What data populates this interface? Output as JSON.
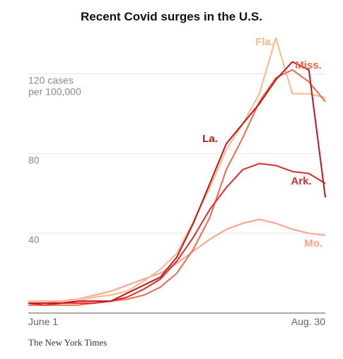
{
  "chart_data": {
    "type": "line",
    "title": "Recent Covid surges in the U.S.",
    "y_unit_label": [
      "120 cases",
      "per 100,000"
    ],
    "y_ticks": [
      40,
      80
    ],
    "ylim": [
      0,
      140
    ],
    "x_ticks": [
      "June 1",
      "Aug. 30"
    ],
    "x_range": [
      "June 1",
      "Aug. 30"
    ],
    "grid": true,
    "x": [
      0,
      5,
      10,
      15,
      20,
      25,
      30,
      35,
      40,
      45,
      50,
      55,
      60,
      65,
      70,
      75,
      80,
      85,
      90
    ],
    "series": [
      {
        "name": "La.",
        "color": "#c0151f",
        "values": [
          5,
          5,
          5,
          6,
          6,
          6,
          10,
          14,
          18,
          28,
          45,
          65,
          85,
          95,
          105,
          117,
          126,
          122,
          58
        ]
      },
      {
        "name": "Fla.",
        "color": "#fbb886",
        "values": [
          6,
          6,
          5,
          6,
          8,
          9,
          11,
          16,
          22,
          30,
          46,
          63,
          82,
          95,
          110,
          138,
          110,
          110,
          108
        ]
      },
      {
        "name": "Miss.",
        "color": "#ef6a4d",
        "values": [
          4,
          4,
          4,
          4,
          5,
          6,
          7,
          9,
          13,
          20,
          32,
          48,
          72,
          88,
          106,
          118,
          122,
          116,
          106
        ]
      },
      {
        "name": "Ark.",
        "color": "#e22a28",
        "values": [
          5,
          4,
          5,
          5,
          5,
          6,
          8,
          12,
          17,
          26,
          38,
          52,
          63,
          72,
          75,
          74,
          71,
          70,
          65
        ]
      },
      {
        "name": "Mo.",
        "color": "#fca38c",
        "values": [
          6,
          6,
          6,
          7,
          9,
          11,
          14,
          17,
          20,
          25,
          31,
          37,
          42,
          45,
          47,
          45,
          42,
          40,
          39
        ]
      }
    ]
  },
  "credit": "The New York Times"
}
